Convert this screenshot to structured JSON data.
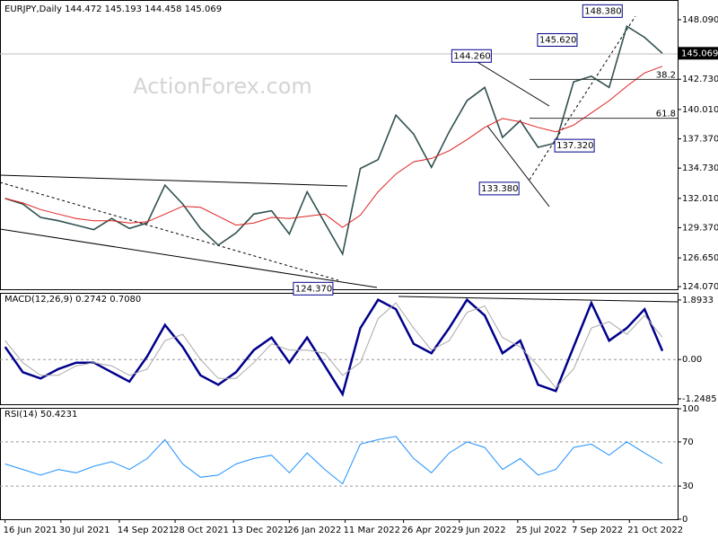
{
  "chart_data": [
    {
      "type": "line",
      "title": "EURJPY,Daily 144.472 145.193 144.458 145.069",
      "watermark": "ActionForex.com",
      "x": [
        "2021-06-16",
        "2021-06-30",
        "2021-07-14",
        "2021-07-28",
        "2021-08-11",
        "2021-08-25",
        "2021-09-08",
        "2021-09-22",
        "2021-10-06",
        "2021-10-20",
        "2021-11-03",
        "2021-11-17",
        "2021-12-01",
        "2021-12-15",
        "2021-12-29",
        "2022-01-12",
        "2022-01-26",
        "2022-02-09",
        "2022-02-23",
        "2022-03-09",
        "2022-03-23",
        "2022-04-06",
        "2022-04-20",
        "2022-05-04",
        "2022-05-18",
        "2022-06-01",
        "2022-06-15",
        "2022-06-29",
        "2022-07-13",
        "2022-07-27",
        "2022-08-10",
        "2022-08-24",
        "2022-09-07",
        "2022-09-21",
        "2022-10-05",
        "2022-10-19",
        "2022-11-02",
        "2022-11-16"
      ],
      "xlim": [
        "2021-06-12",
        "2022-11-28"
      ],
      "xticks": [
        {
          "value": "2021-06-16",
          "label": "16 Jun 2021"
        },
        {
          "value": "2021-07-30",
          "label": "30 Jul 2021"
        },
        {
          "value": "2021-09-14",
          "label": "14 Sep 2021"
        },
        {
          "value": "2021-10-28",
          "label": "28 Oct 2021"
        },
        {
          "value": "2021-12-13",
          "label": "13 Dec 2021"
        },
        {
          "value": "2022-01-26",
          "label": "26 Jan 2022"
        },
        {
          "value": "2022-03-11",
          "label": "11 Mar 2022"
        },
        {
          "value": "2022-04-26",
          "label": "26 Apr 2022"
        },
        {
          "value": "2022-06-09",
          "label": "9 Jun 2022"
        },
        {
          "value": "2022-07-25",
          "label": "25 Jul 2022"
        },
        {
          "value": "2022-09-07",
          "label": "7 Sep 2022"
        },
        {
          "value": "2022-10-21",
          "label": "21 Oct 2022"
        }
      ],
      "series": [
        {
          "name": "EURJPY",
          "color": "#2f4f4f",
          "values": [
            132.0,
            131.5,
            130.3,
            130.0,
            129.6,
            129.2,
            130.2,
            129.3,
            129.8,
            133.2,
            131.5,
            129.3,
            127.8,
            128.9,
            130.6,
            130.9,
            128.8,
            132.6,
            129.8,
            127.0,
            134.7,
            135.5,
            139.5,
            137.8,
            134.8,
            138.0,
            140.8,
            142.0,
            137.5,
            139.0,
            136.6,
            137.0,
            142.5,
            143.0,
            142.0,
            147.5,
            146.5,
            145.069
          ]
        },
        {
          "name": "MA",
          "color": "#e02020",
          "values": [
            132.0,
            131.6,
            131.0,
            130.6,
            130.2,
            130.0,
            130.0,
            129.8,
            129.9,
            130.6,
            131.3,
            131.2,
            130.4,
            129.6,
            129.8,
            130.3,
            130.2,
            130.4,
            130.6,
            129.4,
            130.5,
            132.6,
            134.2,
            135.3,
            135.6,
            136.3,
            137.3,
            138.4,
            139.2,
            138.9,
            138.4,
            138.0,
            138.6,
            139.7,
            140.8,
            142.1,
            143.3,
            143.9
          ]
        }
      ],
      "ylim": [
        123.83,
        149.62
      ],
      "yticks": [
        {
          "value": 124.07,
          "label": "124.070"
        },
        {
          "value": 126.65,
          "label": "126.650"
        },
        {
          "value": 129.37,
          "label": "129.370"
        },
        {
          "value": 132.01,
          "label": "132.010"
        },
        {
          "value": 134.73,
          "label": "134.730"
        },
        {
          "value": 137.37,
          "label": "137.370"
        },
        {
          "value": 140.01,
          "label": "140.010"
        },
        {
          "value": 142.73,
          "label": "142.730"
        },
        {
          "value": 148.09,
          "label": "148.090"
        }
      ],
      "last_price": {
        "value": 145.069,
        "label": "145.069"
      },
      "annotations": [
        {
          "x": "2022-10-21",
          "value": 148.38,
          "label": "148.380"
        },
        {
          "x": "2022-09-14",
          "value": 145.62,
          "label": "145.620"
        },
        {
          "x": "2022-06-20",
          "value": 144.26,
          "label": "144.260"
        },
        {
          "x": "2022-08-26",
          "value": 137.32,
          "label": "137.320"
        },
        {
          "x": "2022-08-02",
          "value": 133.38,
          "label": "133.380"
        },
        {
          "x": "2022-03-07",
          "value": 124.37,
          "label": "124.370"
        }
      ],
      "fib_levels": [
        {
          "name": "38.2",
          "price": 142.72
        },
        {
          "name": "61.8",
          "price": 139.22
        }
      ]
    },
    {
      "type": "line",
      "title": "MACD(12,26,9) 0.2742 0.7080",
      "x": [
        "2021-06-16",
        "2021-06-30",
        "2021-07-14",
        "2021-07-28",
        "2021-08-11",
        "2021-08-25",
        "2021-09-08",
        "2021-09-22",
        "2021-10-06",
        "2021-10-20",
        "2021-11-03",
        "2021-11-17",
        "2021-12-01",
        "2021-12-15",
        "2021-12-29",
        "2022-01-12",
        "2022-01-26",
        "2022-02-09",
        "2022-02-23",
        "2022-03-09",
        "2022-03-23",
        "2022-04-06",
        "2022-04-20",
        "2022-05-04",
        "2022-05-18",
        "2022-06-01",
        "2022-06-15",
        "2022-06-29",
        "2022-07-13",
        "2022-07-27",
        "2022-08-10",
        "2022-08-24",
        "2022-09-07",
        "2022-09-21",
        "2022-10-05",
        "2022-10-19",
        "2022-11-02",
        "2022-11-16"
      ],
      "xlim": [
        "2021-06-12",
        "2022-11-28"
      ],
      "series": [
        {
          "name": "MACD",
          "color": "#00008b",
          "values": [
            0.4,
            -0.4,
            -0.6,
            -0.3,
            -0.1,
            -0.1,
            -0.4,
            -0.7,
            0.1,
            1.1,
            0.4,
            -0.5,
            -0.8,
            -0.4,
            0.3,
            0.7,
            -0.1,
            0.7,
            -0.2,
            -1.1,
            1.0,
            1.9,
            1.6,
            0.5,
            0.2,
            1.0,
            1.9,
            1.4,
            0.2,
            0.6,
            -0.8,
            -1.0,
            0.4,
            1.8,
            0.6,
            1.0,
            1.6,
            0.2742
          ]
        },
        {
          "name": "Signal",
          "color": "#a9a9a9",
          "values": [
            0.6,
            -0.1,
            -0.5,
            -0.5,
            -0.2,
            -0.1,
            -0.2,
            -0.5,
            -0.3,
            0.6,
            0.8,
            0.0,
            -0.6,
            -0.6,
            -0.1,
            0.5,
            0.3,
            0.3,
            0.2,
            -0.5,
            -0.1,
            1.3,
            1.8,
            1.0,
            0.3,
            0.6,
            1.5,
            1.7,
            0.7,
            0.4,
            -0.2,
            -0.9,
            -0.3,
            1.0,
            1.2,
            0.8,
            1.4,
            0.708
          ]
        }
      ],
      "ylim": [
        -1.42,
        2.09
      ],
      "yticks": [
        -1.2485,
        {
          "value": 0,
          "label": "0.00"
        },
        1.8933
      ]
    },
    {
      "type": "line",
      "title": "RSI(14) 50.4231",
      "x": [
        "2021-06-16",
        "2021-06-30",
        "2021-07-14",
        "2021-07-28",
        "2021-08-11",
        "2021-08-25",
        "2021-09-08",
        "2021-09-22",
        "2021-10-06",
        "2021-10-20",
        "2021-11-03",
        "2021-11-17",
        "2021-12-01",
        "2021-12-15",
        "2021-12-29",
        "2022-01-12",
        "2022-01-26",
        "2022-02-09",
        "2022-02-23",
        "2022-03-09",
        "2022-03-23",
        "2022-04-06",
        "2022-04-20",
        "2022-05-04",
        "2022-05-18",
        "2022-06-01",
        "2022-06-15",
        "2022-06-29",
        "2022-07-13",
        "2022-07-27",
        "2022-08-10",
        "2022-08-24",
        "2022-09-07",
        "2022-09-21",
        "2022-10-05",
        "2022-10-19",
        "2022-11-02",
        "2022-11-16"
      ],
      "xlim": [
        "2021-06-12",
        "2022-11-28"
      ],
      "series": [
        {
          "name": "RSI",
          "color": "#1e90ff",
          "values": [
            50,
            45,
            40,
            45,
            42,
            48,
            52,
            45,
            55,
            72,
            50,
            38,
            40,
            50,
            55,
            58,
            42,
            60,
            45,
            32,
            68,
            72,
            75,
            55,
            42,
            60,
            70,
            65,
            45,
            55,
            40,
            45,
            65,
            68,
            58,
            70,
            60,
            50.4231
          ]
        }
      ],
      "ylim": [
        0,
        100
      ],
      "yticks": [
        0,
        30,
        70,
        100
      ]
    }
  ]
}
